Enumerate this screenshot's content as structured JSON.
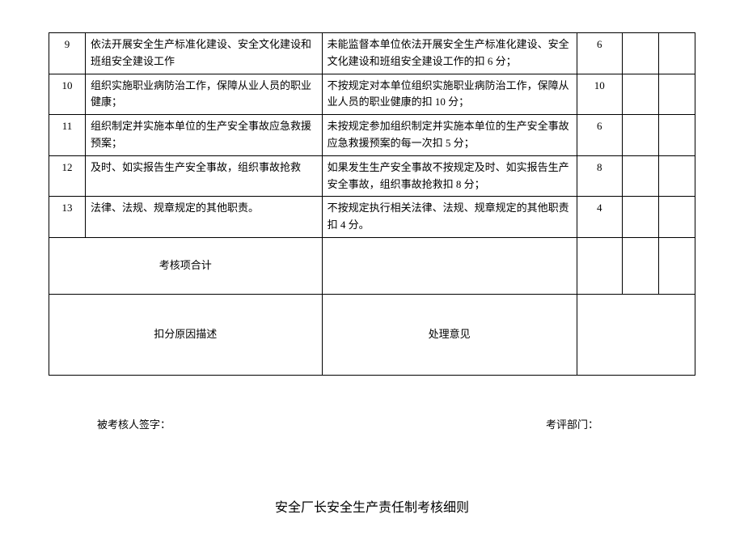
{
  "rows": [
    {
      "idx": "9",
      "desc": "依法开展安全生产标准化建设、安全文化建设和班组安全建设工作",
      "criteria": "未能监督本单位依法开展安全生产标准化建设、安全文化建设和班组安全建设工作的扣 6 分；",
      "score": "6"
    },
    {
      "idx": "10",
      "desc": "组织实施职业病防治工作，保障从业人员的职业健康；",
      "criteria": "不按规定对本单位组织实施职业病防治工作，保障从业人员的职业健康的扣 10 分；",
      "score": "10"
    },
    {
      "idx": "11",
      "desc": "组织制定并实施本单位的生产安全事故应急救援预案；",
      "criteria": "未按规定参加组织制定并实施本单位的生产安全事故应急救援预案的每一次扣 5 分；",
      "score": "6"
    },
    {
      "idx": "12",
      "desc": "及时、如实报告生产安全事故，组织事故抢救",
      "criteria": "如果发生生产安全事故不按规定及时、如实报告生产安全事故，组织事故抢救扣 8 分；",
      "score": "8"
    },
    {
      "idx": "13",
      "desc": "法律、法规、规章规定的其他职责。",
      "criteria": "不按规定执行相关法律、法规、规章规定的其他职责扣 4 分。",
      "score": "4"
    }
  ],
  "total_label": "考核项合计",
  "deduction_label": "扣分原因描述",
  "opinion_label": "处理意见",
  "signee_label": "被考核人签字：",
  "dept_label": "考评部门：",
  "page_title": "安全厂长安全生产责任制考核细则"
}
